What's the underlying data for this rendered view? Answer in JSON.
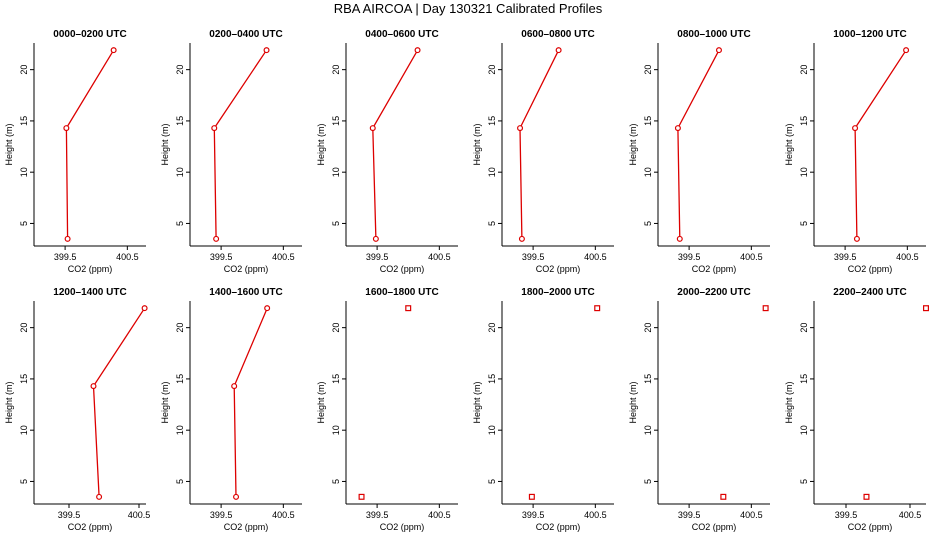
{
  "figure": {
    "title": "RBA AIRCOA  |  Day 130321  Calibrated Profiles"
  },
  "style": {
    "series_color": "#dd0000",
    "axis_color": "#000000"
  },
  "chart_data": [
    {
      "type": "line",
      "title": "0000–0200 UTC",
      "xlabel": "CO2 (ppm)",
      "ylabel": "Height (m)",
      "xlim": [
        399.0,
        400.8
      ],
      "ylim": [
        2.8,
        22.6
      ],
      "xticks": [
        399.5,
        400.5
      ],
      "xtick_labels": [
        "399.5",
        "400.5"
      ],
      "yticks": [
        5,
        10,
        15,
        20
      ],
      "ytick_labels": [
        "5",
        "10",
        "15",
        "20"
      ],
      "points": [
        {
          "x": 399.54,
          "y": 3.5
        },
        {
          "x": 399.52,
          "y": 14.3
        },
        {
          "x": 400.28,
          "y": 21.9
        }
      ],
      "connected": true
    },
    {
      "type": "line",
      "title": "0200–0400 UTC",
      "xlabel": "CO2 (ppm)",
      "ylabel": "Height (m)",
      "xlim": [
        399.0,
        400.8
      ],
      "ylim": [
        2.8,
        22.6
      ],
      "xticks": [
        399.5,
        400.5
      ],
      "xtick_labels": [
        "399.5",
        "400.5"
      ],
      "yticks": [
        5,
        10,
        15,
        20
      ],
      "ytick_labels": [
        "5",
        "10",
        "15",
        "20"
      ],
      "points": [
        {
          "x": 399.42,
          "y": 3.5
        },
        {
          "x": 399.39,
          "y": 14.3
        },
        {
          "x": 400.23,
          "y": 21.9
        }
      ],
      "connected": true
    },
    {
      "type": "line",
      "title": "0400–0600 UTC",
      "xlabel": "CO2 (ppm)",
      "ylabel": "Height (m)",
      "xlim": [
        399.0,
        400.8
      ],
      "ylim": [
        2.8,
        22.6
      ],
      "xticks": [
        399.5,
        400.5
      ],
      "xtick_labels": [
        "399.5",
        "400.5"
      ],
      "yticks": [
        5,
        10,
        15,
        20
      ],
      "ytick_labels": [
        "5",
        "10",
        "15",
        "20"
      ],
      "points": [
        {
          "x": 399.48,
          "y": 3.5
        },
        {
          "x": 399.43,
          "y": 14.3
        },
        {
          "x": 400.15,
          "y": 21.9
        }
      ],
      "connected": true
    },
    {
      "type": "line",
      "title": "0600–0800 UTC",
      "xlabel": "CO2 (ppm)",
      "ylabel": "Height (m)",
      "xlim": [
        399.0,
        400.8
      ],
      "ylim": [
        2.8,
        22.6
      ],
      "xticks": [
        399.5,
        400.5
      ],
      "xtick_labels": [
        "399.5",
        "400.5"
      ],
      "yticks": [
        5,
        10,
        15,
        20
      ],
      "ytick_labels": [
        "5",
        "10",
        "15",
        "20"
      ],
      "points": [
        {
          "x": 399.32,
          "y": 3.5
        },
        {
          "x": 399.29,
          "y": 14.3
        },
        {
          "x": 399.91,
          "y": 21.9
        }
      ],
      "connected": true
    },
    {
      "type": "line",
      "title": "0800–1000 UTC",
      "xlabel": "CO2 (ppm)",
      "ylabel": "Height (m)",
      "xlim": [
        399.0,
        400.8
      ],
      "ylim": [
        2.8,
        22.6
      ],
      "xticks": [
        399.5,
        400.5
      ],
      "xtick_labels": [
        "399.5",
        "400.5"
      ],
      "yticks": [
        5,
        10,
        15,
        20
      ],
      "ytick_labels": [
        "5",
        "10",
        "15",
        "20"
      ],
      "points": [
        {
          "x": 399.35,
          "y": 3.5
        },
        {
          "x": 399.32,
          "y": 14.3
        },
        {
          "x": 399.98,
          "y": 21.9
        }
      ],
      "connected": true
    },
    {
      "type": "line",
      "title": "1000–1200 UTC",
      "xlabel": "CO2 (ppm)",
      "ylabel": "Height (m)",
      "xlim": [
        399.0,
        400.8
      ],
      "ylim": [
        2.8,
        22.6
      ],
      "xticks": [
        399.5,
        400.5
      ],
      "xtick_labels": [
        "399.5",
        "400.5"
      ],
      "yticks": [
        5,
        10,
        15,
        20
      ],
      "ytick_labels": [
        "5",
        "10",
        "15",
        "20"
      ],
      "points": [
        {
          "x": 399.69,
          "y": 3.5
        },
        {
          "x": 399.66,
          "y": 14.3
        },
        {
          "x": 400.48,
          "y": 21.9
        }
      ],
      "connected": true
    },
    {
      "type": "line",
      "title": "1200–1400 UTC",
      "xlabel": "CO2 (ppm)",
      "ylabel": "Height (m)",
      "xlim": [
        399.0,
        400.6
      ],
      "ylim": [
        2.8,
        22.6
      ],
      "xticks": [
        399.5,
        400.5
      ],
      "xtick_labels": [
        "399.5",
        "400.5"
      ],
      "yticks": [
        5,
        10,
        15,
        20
      ],
      "ytick_labels": [
        "5",
        "10",
        "15",
        "20"
      ],
      "points": [
        {
          "x": 399.93,
          "y": 3.5
        },
        {
          "x": 399.85,
          "y": 14.3
        },
        {
          "x": 400.58,
          "y": 21.9
        }
      ],
      "connected": true
    },
    {
      "type": "line",
      "title": "1400–1600 UTC",
      "xlabel": "CO2 (ppm)",
      "ylabel": "Height (m)",
      "xlim": [
        399.0,
        400.8
      ],
      "ylim": [
        2.8,
        22.6
      ],
      "xticks": [
        399.5,
        400.5
      ],
      "xtick_labels": [
        "399.5",
        "400.5"
      ],
      "yticks": [
        5,
        10,
        15,
        20
      ],
      "ytick_labels": [
        "5",
        "10",
        "15",
        "20"
      ],
      "points": [
        {
          "x": 399.74,
          "y": 3.5
        },
        {
          "x": 399.71,
          "y": 14.3
        },
        {
          "x": 400.24,
          "y": 21.9
        }
      ],
      "connected": true
    },
    {
      "type": "scatter",
      "title": "1600–1800 UTC",
      "xlabel": "CO2 (ppm)",
      "ylabel": "Height (m)",
      "xlim": [
        399.0,
        400.8
      ],
      "ylim": [
        2.8,
        22.6
      ],
      "xticks": [
        399.5,
        400.5
      ],
      "xtick_labels": [
        "399.5",
        "400.5"
      ],
      "yticks": [
        5,
        10,
        15,
        20
      ],
      "ytick_labels": [
        "5",
        "10",
        "15",
        "20"
      ],
      "points": [
        {
          "x": 399.25,
          "y": 3.5
        },
        {
          "x": 400.0,
          "y": 21.9
        }
      ],
      "connected": false
    },
    {
      "type": "scatter",
      "title": "1800–2000 UTC",
      "xlabel": "CO2 (ppm)",
      "ylabel": "Height (m)",
      "xlim": [
        399.0,
        400.8
      ],
      "ylim": [
        2.8,
        22.6
      ],
      "xticks": [
        399.5,
        400.5
      ],
      "xtick_labels": [
        "399.5",
        "400.5"
      ],
      "yticks": [
        5,
        10,
        15,
        20
      ],
      "ytick_labels": [
        "5",
        "10",
        "15",
        "20"
      ],
      "points": [
        {
          "x": 399.48,
          "y": 3.5
        },
        {
          "x": 400.53,
          "y": 21.9
        }
      ],
      "connected": false
    },
    {
      "type": "scatter",
      "title": "2000–2200 UTC",
      "xlabel": "CO2 (ppm)",
      "ylabel": "Height (m)",
      "xlim": [
        399.0,
        400.8
      ],
      "ylim": [
        2.8,
        22.6
      ],
      "xticks": [
        399.5,
        400.5
      ],
      "xtick_labels": [
        "399.5",
        "400.5"
      ],
      "yticks": [
        5,
        10,
        15,
        20
      ],
      "ytick_labels": [
        "5",
        "10",
        "15",
        "20"
      ],
      "points": [
        {
          "x": 400.05,
          "y": 3.5
        },
        {
          "x": 400.73,
          "y": 21.9
        }
      ],
      "connected": false
    },
    {
      "type": "scatter",
      "title": "2200–2400 UTC",
      "xlabel": "CO2 (ppm)",
      "ylabel": "Height (m)",
      "xlim": [
        399.0,
        400.75
      ],
      "ylim": [
        2.8,
        22.6
      ],
      "xticks": [
        399.5,
        400.5
      ],
      "xtick_labels": [
        "399.5",
        "400.5"
      ],
      "yticks": [
        5,
        10,
        15,
        20
      ],
      "ytick_labels": [
        "5",
        "10",
        "15",
        "20"
      ],
      "points": [
        {
          "x": 399.82,
          "y": 3.5
        },
        {
          "x": 400.75,
          "y": 21.9
        }
      ],
      "connected": false
    }
  ]
}
